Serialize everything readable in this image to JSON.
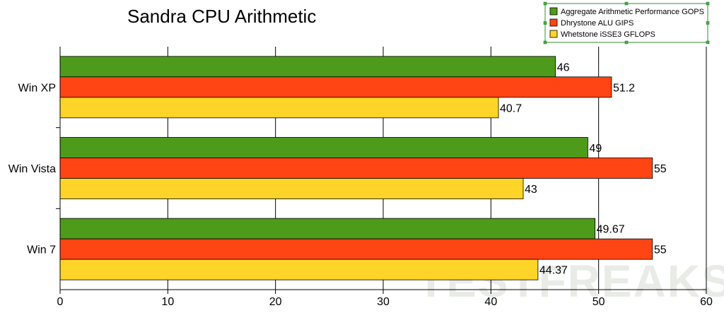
{
  "chart_data": {
    "type": "bar",
    "orientation": "horizontal",
    "title": "Sandra CPU Arithmetic",
    "categories": [
      "Win XP",
      "Win Vista",
      "Win 7"
    ],
    "series": [
      {
        "name": "Aggregate Arithmetic Performance GOPS",
        "color": "#4e9a1a",
        "values": [
          46,
          49,
          49.67
        ],
        "labels": [
          "46",
          "49",
          "49.67"
        ]
      },
      {
        "name": "Dhrystone ALU GIPS",
        "color": "#ff4514",
        "values": [
          51.2,
          55,
          55
        ],
        "labels": [
          "51.2",
          "55",
          "55"
        ]
      },
      {
        "name": "Whetstone iSSE3 GFLOPS",
        "color": "#ffd428",
        "values": [
          40.7,
          43,
          44.37
        ],
        "labels": [
          "40.7",
          "43",
          "44.37"
        ]
      }
    ],
    "xlim": [
      0,
      60
    ],
    "xticks": [
      "0",
      "10",
      "20",
      "30",
      "40",
      "50",
      "60"
    ],
    "xlabel": "",
    "ylabel": "",
    "grid": true,
    "legend": "top-right"
  },
  "watermark": "TESTFREAKS"
}
